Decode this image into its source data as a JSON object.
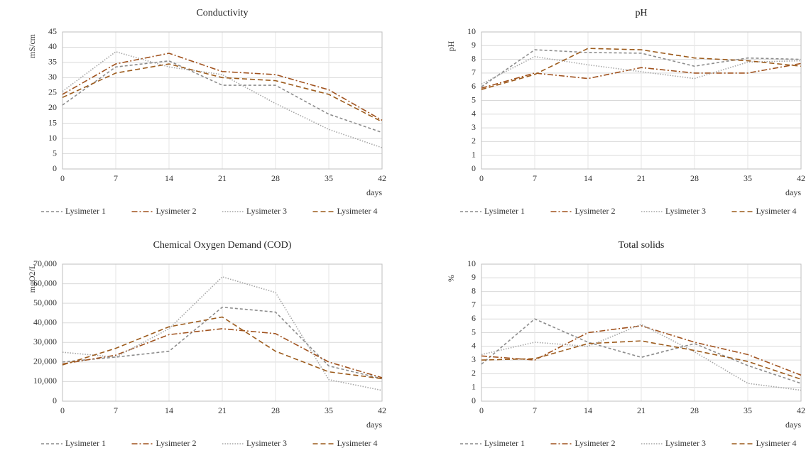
{
  "chart_data": [
    {
      "type": "line",
      "title": "Conductivity",
      "y_label": "mS/cm",
      "x_label": "days",
      "x": [
        0,
        7,
        14,
        21,
        28,
        35,
        42
      ],
      "xlim": [
        0,
        42
      ],
      "xticks": [
        0,
        7,
        14,
        21,
        28,
        35,
        42
      ],
      "ylim": [
        0,
        45
      ],
      "yticks": [
        0,
        5,
        10,
        15,
        20,
        25,
        30,
        35,
        40,
        45
      ],
      "grid": true,
      "series": [
        {
          "name": "Lysimeter 1",
          "color": "#8c8c8c",
          "dash": "dashed",
          "values": [
            21,
            33.5,
            35.5,
            27.5,
            27.5,
            18,
            12
          ]
        },
        {
          "name": "Lysimeter 2",
          "color": "#a0521e",
          "dash": "dashdot",
          "values": [
            24.5,
            34.5,
            38,
            32,
            31,
            26,
            16
          ]
        },
        {
          "name": "Lysimeter 3",
          "color": "#a6a6a6",
          "dash": "dotted",
          "values": [
            25.5,
            38.5,
            33.5,
            31,
            21.5,
            13,
            7
          ]
        },
        {
          "name": "Lysimeter 4",
          "color": "#9c5b1c",
          "dash": "longdash",
          "values": [
            23.5,
            31.5,
            34.5,
            30,
            29,
            24.5,
            15.5
          ]
        }
      ]
    },
    {
      "type": "line",
      "title": "pH",
      "y_label": "pH",
      "x_label": "days",
      "x": [
        0,
        7,
        14,
        21,
        28,
        35,
        42
      ],
      "xlim": [
        0,
        42
      ],
      "xticks": [
        0,
        7,
        14,
        21,
        28,
        35,
        42
      ],
      "ylim": [
        0,
        10
      ],
      "yticks": [
        0,
        1,
        2,
        3,
        4,
        5,
        6,
        7,
        8,
        9,
        10
      ],
      "grid": true,
      "series": [
        {
          "name": "Lysimeter 1",
          "color": "#8c8c8c",
          "dash": "dashed",
          "values": [
            6,
            8.7,
            8.5,
            8.45,
            7.5,
            8.1,
            8
          ]
        },
        {
          "name": "Lysimeter 2",
          "color": "#a0521e",
          "dash": "dashdot",
          "values": [
            5.9,
            7,
            6.6,
            7.4,
            7,
            7,
            7.7
          ]
        },
        {
          "name": "Lysimeter 3",
          "color": "#a6a6a6",
          "dash": "dotted",
          "values": [
            6.2,
            8.2,
            7.6,
            7.1,
            6.6,
            7.8,
            7.9
          ]
        },
        {
          "name": "Lysimeter 4",
          "color": "#9c5b1c",
          "dash": "longdash",
          "values": [
            5.8,
            6.9,
            8.8,
            8.7,
            8.1,
            7.9,
            7.5
          ]
        }
      ]
    },
    {
      "type": "line",
      "title": "Chemical Oxygen Demand (COD)",
      "y_label": "mgO2/L",
      "x_label": "days",
      "x": [
        0,
        7,
        14,
        21,
        28,
        35,
        42
      ],
      "xlim": [
        0,
        42
      ],
      "xticks": [
        0,
        7,
        14,
        21,
        28,
        35,
        42
      ],
      "ylim": [
        0,
        70000
      ],
      "yticks": [
        0,
        {
          "value": 10000,
          "label": "10,000"
        },
        {
          "value": 20000,
          "label": "20,000"
        },
        {
          "value": 30000,
          "label": "30,000"
        },
        {
          "value": 40000,
          "label": "40,000"
        },
        {
          "value": 50000,
          "label": "50,000"
        },
        {
          "value": 60000,
          "label": "60,000"
        },
        {
          "value": 70000,
          "label": "70,000"
        }
      ],
      "grid": true,
      "series": [
        {
          "name": "Lysimeter 1",
          "color": "#8c8c8c",
          "dash": "dashed",
          "values": [
            20000,
            22500,
            25500,
            48000,
            45500,
            18000,
            11500
          ]
        },
        {
          "name": "Lysimeter 2",
          "color": "#a0521e",
          "dash": "dashdot",
          "values": [
            19000,
            23500,
            34000,
            37000,
            34500,
            20000,
            12000
          ]
        },
        {
          "name": "Lysimeter 3",
          "color": "#a6a6a6",
          "dash": "dotted",
          "values": [
            25000,
            22500,
            37000,
            63500,
            55500,
            11000,
            5500
          ]
        },
        {
          "name": "Lysimeter 4",
          "color": "#9c5b1c",
          "dash": "longdash",
          "values": [
            18500,
            27000,
            38000,
            43000,
            25500,
            15000,
            11500
          ]
        }
      ]
    },
    {
      "type": "line",
      "title": "Total solids",
      "y_label": "%",
      "x_label": "days",
      "x": [
        0,
        7,
        14,
        21,
        28,
        35,
        42
      ],
      "xlim": [
        0,
        42
      ],
      "xticks": [
        0,
        7,
        14,
        21,
        28,
        35,
        42
      ],
      "ylim": [
        0,
        10
      ],
      "yticks": [
        0,
        1,
        2,
        3,
        4,
        5,
        6,
        7,
        8,
        9,
        10
      ],
      "grid": true,
      "series": [
        {
          "name": "Lysimeter 1",
          "color": "#8c8c8c",
          "dash": "dashed",
          "values": [
            2.7,
            6,
            4.3,
            3.2,
            4.2,
            2.6,
            1.3
          ]
        },
        {
          "name": "Lysimeter 2",
          "color": "#a0521e",
          "dash": "dashdot",
          "values": [
            3.3,
            3,
            5,
            5.5,
            4.3,
            3.4,
            1.9
          ]
        },
        {
          "name": "Lysimeter 3",
          "color": "#a6a6a6",
          "dash": "dotted",
          "values": [
            3.4,
            4.3,
            4,
            5.6,
            3.6,
            1.3,
            0.8
          ]
        },
        {
          "name": "Lysimeter 4",
          "color": "#9c5b1c",
          "dash": "longdash",
          "values": [
            3,
            3.1,
            4.2,
            4.4,
            3.7,
            2.9,
            1.6
          ]
        }
      ]
    }
  ]
}
